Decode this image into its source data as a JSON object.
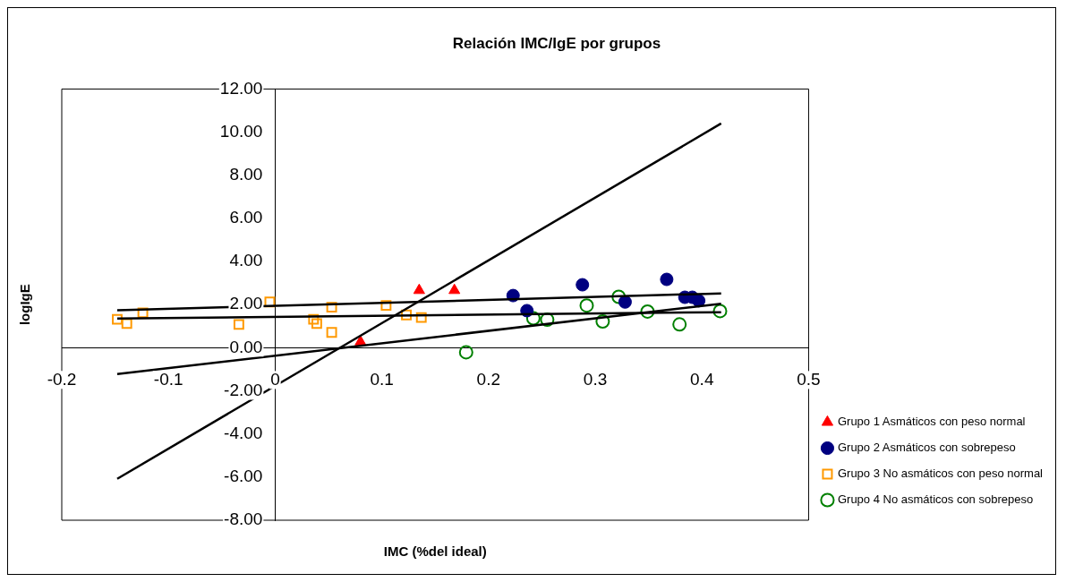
{
  "chart_data": {
    "type": "scatter",
    "title": "Relación IMC/IgE por grupos",
    "xlabel": "IMC (%del ideal)",
    "ylabel": "logIgE",
    "xlim": [
      -0.2,
      0.5
    ],
    "xticks": [
      -0.2,
      -0.1,
      0,
      0.1,
      0.2,
      0.3,
      0.4,
      0.5
    ],
    "ylim": [
      -8,
      12
    ],
    "yticks": [
      {
        "value": -8,
        "label": "-8.00"
      },
      {
        "value": -6,
        "label": "-6.00"
      },
      {
        "value": -4,
        "label": "-4.00"
      },
      {
        "value": -2,
        "label": "-2.00"
      },
      {
        "value": 0,
        "label": "0.00"
      },
      {
        "value": 2,
        "label": "2.00"
      },
      {
        "value": 4,
        "label": "4.00"
      },
      {
        "value": 6,
        "label": "6.00"
      },
      {
        "value": 8,
        "label": "8.00"
      },
      {
        "value": 10,
        "label": "10.00"
      },
      {
        "value": 12,
        "label": "12.00"
      }
    ],
    "grid": false,
    "legend": "right",
    "series": [
      {
        "name": "Grupo 1 Asmáticos con peso normal",
        "color": "#ff0000",
        "marker": "triangle",
        "x": [
          0.08,
          0.135,
          0.168
        ],
        "values": [
          0.27,
          2.66,
          2.66
        ]
      },
      {
        "name": "Grupo 2 Asmáticos con sobrepeso",
        "color": "#000080",
        "marker": "circle",
        "x": [
          0.223,
          0.236,
          0.288,
          0.328,
          0.367,
          0.384,
          0.391,
          0.397
        ],
        "values": [
          2.42,
          1.72,
          2.92,
          2.12,
          3.17,
          2.34,
          2.34,
          2.18
        ]
      },
      {
        "name": "Grupo 3 No asmáticos con peso normal",
        "color": "#ff9900",
        "marker": "square",
        "x": [
          -0.148,
          -0.139,
          -0.124,
          -0.034,
          -0.005,
          0.036,
          0.039,
          0.053,
          0.053,
          0.104,
          0.123,
          0.137
        ],
        "values": [
          1.32,
          1.12,
          1.62,
          1.08,
          2.12,
          1.32,
          1.12,
          0.71,
          1.88,
          1.96,
          1.52,
          1.4
        ]
      },
      {
        "name": "Grupo 4 No asmáticos con sobrepeso",
        "color": "#008000",
        "marker": "circle",
        "x": [
          0.179,
          0.242,
          0.255,
          0.292,
          0.307,
          0.322,
          0.349,
          0.379,
          0.417
        ],
        "values": [
          -0.21,
          1.36,
          1.3,
          1.96,
          1.22,
          2.36,
          1.68,
          1.08,
          1.7
        ]
      },
      {
        "type": "line",
        "color": "#000000",
        "marker": "none",
        "x": [
          -0.148,
          0.418
        ],
        "values": [
          -6.08,
          10.4
        ]
      },
      {
        "type": "line",
        "color": "#000000",
        "marker": "none",
        "x": [
          -0.148,
          0.418
        ],
        "values": [
          1.74,
          2.52
        ]
      },
      {
        "type": "line",
        "color": "#000000",
        "marker": "none",
        "x": [
          -0.148,
          0.418
        ],
        "values": [
          1.35,
          1.65
        ]
      },
      {
        "type": "line",
        "color": "#000000",
        "marker": "none",
        "x": [
          -0.148,
          0.418
        ],
        "values": [
          -1.22,
          2.04
        ]
      }
    ]
  }
}
